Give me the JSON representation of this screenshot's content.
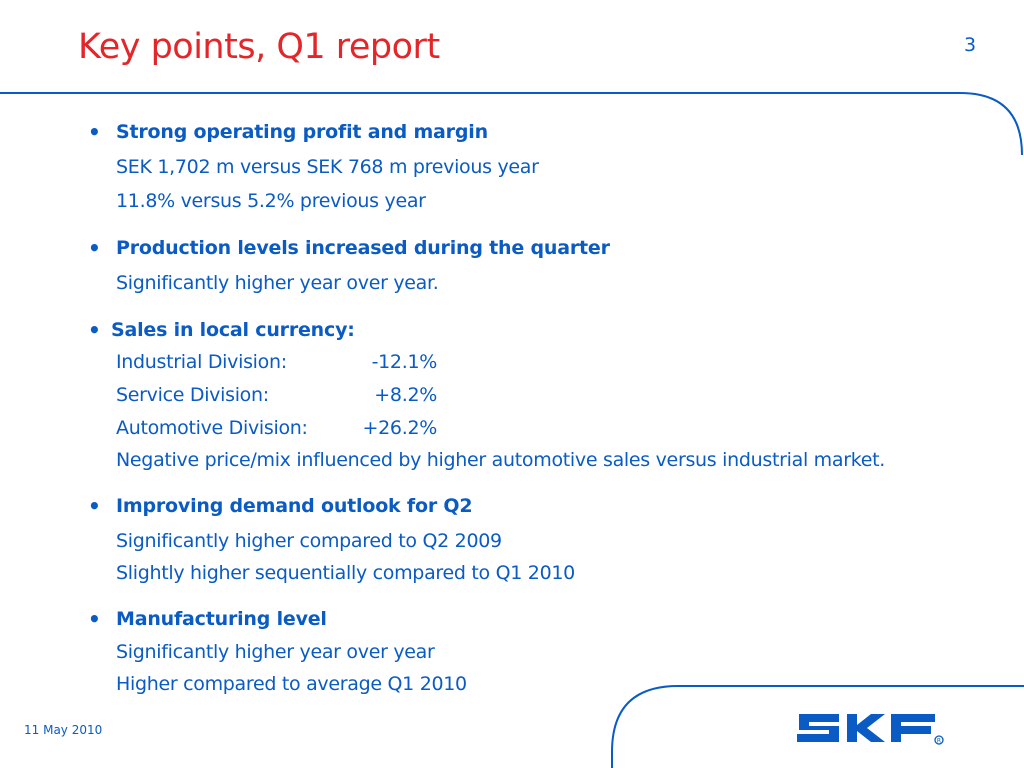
{
  "slide": {
    "title": "Key points, Q1 report",
    "page_number": "3",
    "date": "11 May 2010",
    "logo_text": "SKF",
    "bullet_glyph": "•"
  },
  "sections": [
    {
      "heading": "Strong operating profit and margin",
      "lines": [
        "SEK 1,702 m versus SEK 768 m previous year",
        "11.8% versus 5.2% previous year"
      ]
    },
    {
      "heading": "Production levels increased during the quarter",
      "lines": [
        "Significantly higher year over year."
      ]
    },
    {
      "heading": "Sales in local currency:",
      "divisions": [
        {
          "name": "Industrial Division:",
          "value": "-12.1%"
        },
        {
          "name": "Service Division:",
          "value": "+8.2%"
        },
        {
          "name": "Automotive Division:",
          "value": "+26.2%"
        }
      ],
      "note": "Negative price/mix influenced by higher automotive sales versus industrial market."
    },
    {
      "heading": "Improving demand outlook for Q2",
      "lines": [
        "Significantly higher compared to Q2 2009",
        "Slightly higher sequentially compared to Q1 2010"
      ]
    },
    {
      "heading": "Manufacturing level",
      "lines": [
        "Significantly higher year over year",
        "Higher compared to average Q1 2010"
      ]
    }
  ],
  "colors": {
    "title": "#e3262a",
    "text": "#0a5bc4",
    "logo": "#0a5bc4"
  }
}
